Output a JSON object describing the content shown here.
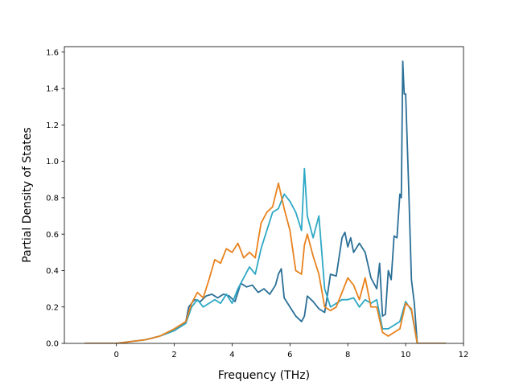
{
  "chart_data": {
    "type": "line",
    "title": "",
    "xlabel": "Frequency (THz)",
    "ylabel": "Partial Density of States",
    "xlim": [
      -1.8,
      12.0
    ],
    "ylim": [
      0.0,
      1.63
    ],
    "xticks": [
      0,
      2,
      4,
      6,
      8,
      10,
      12
    ],
    "yticks": [
      0.0,
      0.2,
      0.4,
      0.6,
      0.8,
      1.0,
      1.2,
      1.4,
      1.6
    ],
    "xtick_labels": [
      "0",
      "2",
      "4",
      "6",
      "8",
      "10",
      "12"
    ],
    "ytick_labels": [
      "0.0",
      "0.2",
      "0.4",
      "0.6",
      "0.8",
      "1.0",
      "1.2",
      "1.4",
      "1.6"
    ],
    "grid": false,
    "legend": "none",
    "series": [
      {
        "color": "#2a6f97",
        "x": [
          -1.1,
          0.0,
          0.5,
          1.0,
          1.5,
          2.0,
          2.4,
          2.5,
          2.7,
          2.9,
          3.1,
          3.3,
          3.5,
          3.7,
          3.9,
          4.1,
          4.3,
          4.5,
          4.7,
          4.9,
          5.1,
          5.3,
          5.5,
          5.6,
          5.7,
          5.8,
          6.0,
          6.2,
          6.4,
          6.5,
          6.6,
          6.8,
          7.0,
          7.2,
          7.3,
          7.4,
          7.6,
          7.8,
          7.9,
          8.0,
          8.1,
          8.2,
          8.4,
          8.6,
          8.8,
          9.0,
          9.1,
          9.2,
          9.3,
          9.4,
          9.5,
          9.6,
          9.7,
          9.8,
          9.85,
          9.9,
          9.95,
          10.0,
          10.1,
          10.2,
          10.3,
          10.4,
          10.6,
          11.4
        ],
        "y": [
          0.0,
          0.0,
          0.01,
          0.02,
          0.04,
          0.07,
          0.12,
          0.2,
          0.24,
          0.23,
          0.26,
          0.27,
          0.25,
          0.27,
          0.26,
          0.23,
          0.33,
          0.31,
          0.32,
          0.28,
          0.3,
          0.27,
          0.32,
          0.38,
          0.41,
          0.25,
          0.2,
          0.15,
          0.12,
          0.15,
          0.26,
          0.23,
          0.19,
          0.17,
          0.27,
          0.38,
          0.37,
          0.58,
          0.61,
          0.53,
          0.58,
          0.5,
          0.55,
          0.5,
          0.36,
          0.3,
          0.44,
          0.15,
          0.16,
          0.4,
          0.35,
          0.59,
          0.58,
          0.82,
          0.8,
          1.55,
          1.37,
          1.37,
          0.88,
          0.35,
          0.22,
          0.0,
          0.0,
          0.0
        ]
      },
      {
        "color": "#2ea8c4",
        "x": [
          -1.1,
          0.0,
          0.5,
          1.0,
          1.5,
          2.0,
          2.4,
          2.6,
          2.8,
          3.0,
          3.2,
          3.4,
          3.6,
          3.8,
          4.0,
          4.2,
          4.4,
          4.6,
          4.8,
          5.0,
          5.2,
          5.4,
          5.6,
          5.8,
          6.0,
          6.2,
          6.4,
          6.5,
          6.6,
          6.8,
          7.0,
          7.2,
          7.4,
          7.6,
          7.8,
          8.0,
          8.2,
          8.4,
          8.6,
          8.8,
          9.0,
          9.2,
          9.4,
          9.6,
          9.8,
          10.0,
          10.2,
          10.4,
          10.6,
          11.4
        ],
        "y": [
          0.0,
          0.0,
          0.01,
          0.02,
          0.04,
          0.07,
          0.11,
          0.2,
          0.24,
          0.2,
          0.22,
          0.24,
          0.22,
          0.27,
          0.22,
          0.3,
          0.36,
          0.42,
          0.38,
          0.52,
          0.62,
          0.72,
          0.74,
          0.82,
          0.78,
          0.72,
          0.62,
          0.96,
          0.7,
          0.58,
          0.7,
          0.3,
          0.2,
          0.22,
          0.24,
          0.24,
          0.25,
          0.2,
          0.24,
          0.22,
          0.24,
          0.08,
          0.08,
          0.1,
          0.12,
          0.23,
          0.18,
          0.0,
          0.0,
          0.0
        ]
      },
      {
        "color": "#e8821e",
        "x": [
          -1.1,
          0.0,
          0.5,
          1.0,
          1.5,
          2.0,
          2.4,
          2.6,
          2.8,
          3.0,
          3.2,
          3.4,
          3.6,
          3.8,
          4.0,
          4.2,
          4.4,
          4.6,
          4.8,
          5.0,
          5.2,
          5.4,
          5.6,
          5.8,
          6.0,
          6.2,
          6.4,
          6.5,
          6.6,
          6.8,
          7.0,
          7.2,
          7.4,
          7.6,
          7.8,
          8.0,
          8.2,
          8.4,
          8.6,
          8.8,
          9.0,
          9.2,
          9.4,
          9.6,
          9.8,
          10.0,
          10.2,
          10.4,
          10.6,
          11.4
        ],
        "y": [
          0.0,
          0.0,
          0.01,
          0.02,
          0.04,
          0.08,
          0.12,
          0.22,
          0.28,
          0.25,
          0.35,
          0.46,
          0.44,
          0.52,
          0.5,
          0.55,
          0.47,
          0.5,
          0.47,
          0.66,
          0.72,
          0.75,
          0.88,
          0.74,
          0.62,
          0.4,
          0.38,
          0.54,
          0.6,
          0.48,
          0.38,
          0.2,
          0.18,
          0.2,
          0.28,
          0.36,
          0.32,
          0.24,
          0.36,
          0.2,
          0.2,
          0.06,
          0.04,
          0.06,
          0.08,
          0.22,
          0.19,
          0.0,
          0.0,
          0.0
        ]
      }
    ]
  }
}
